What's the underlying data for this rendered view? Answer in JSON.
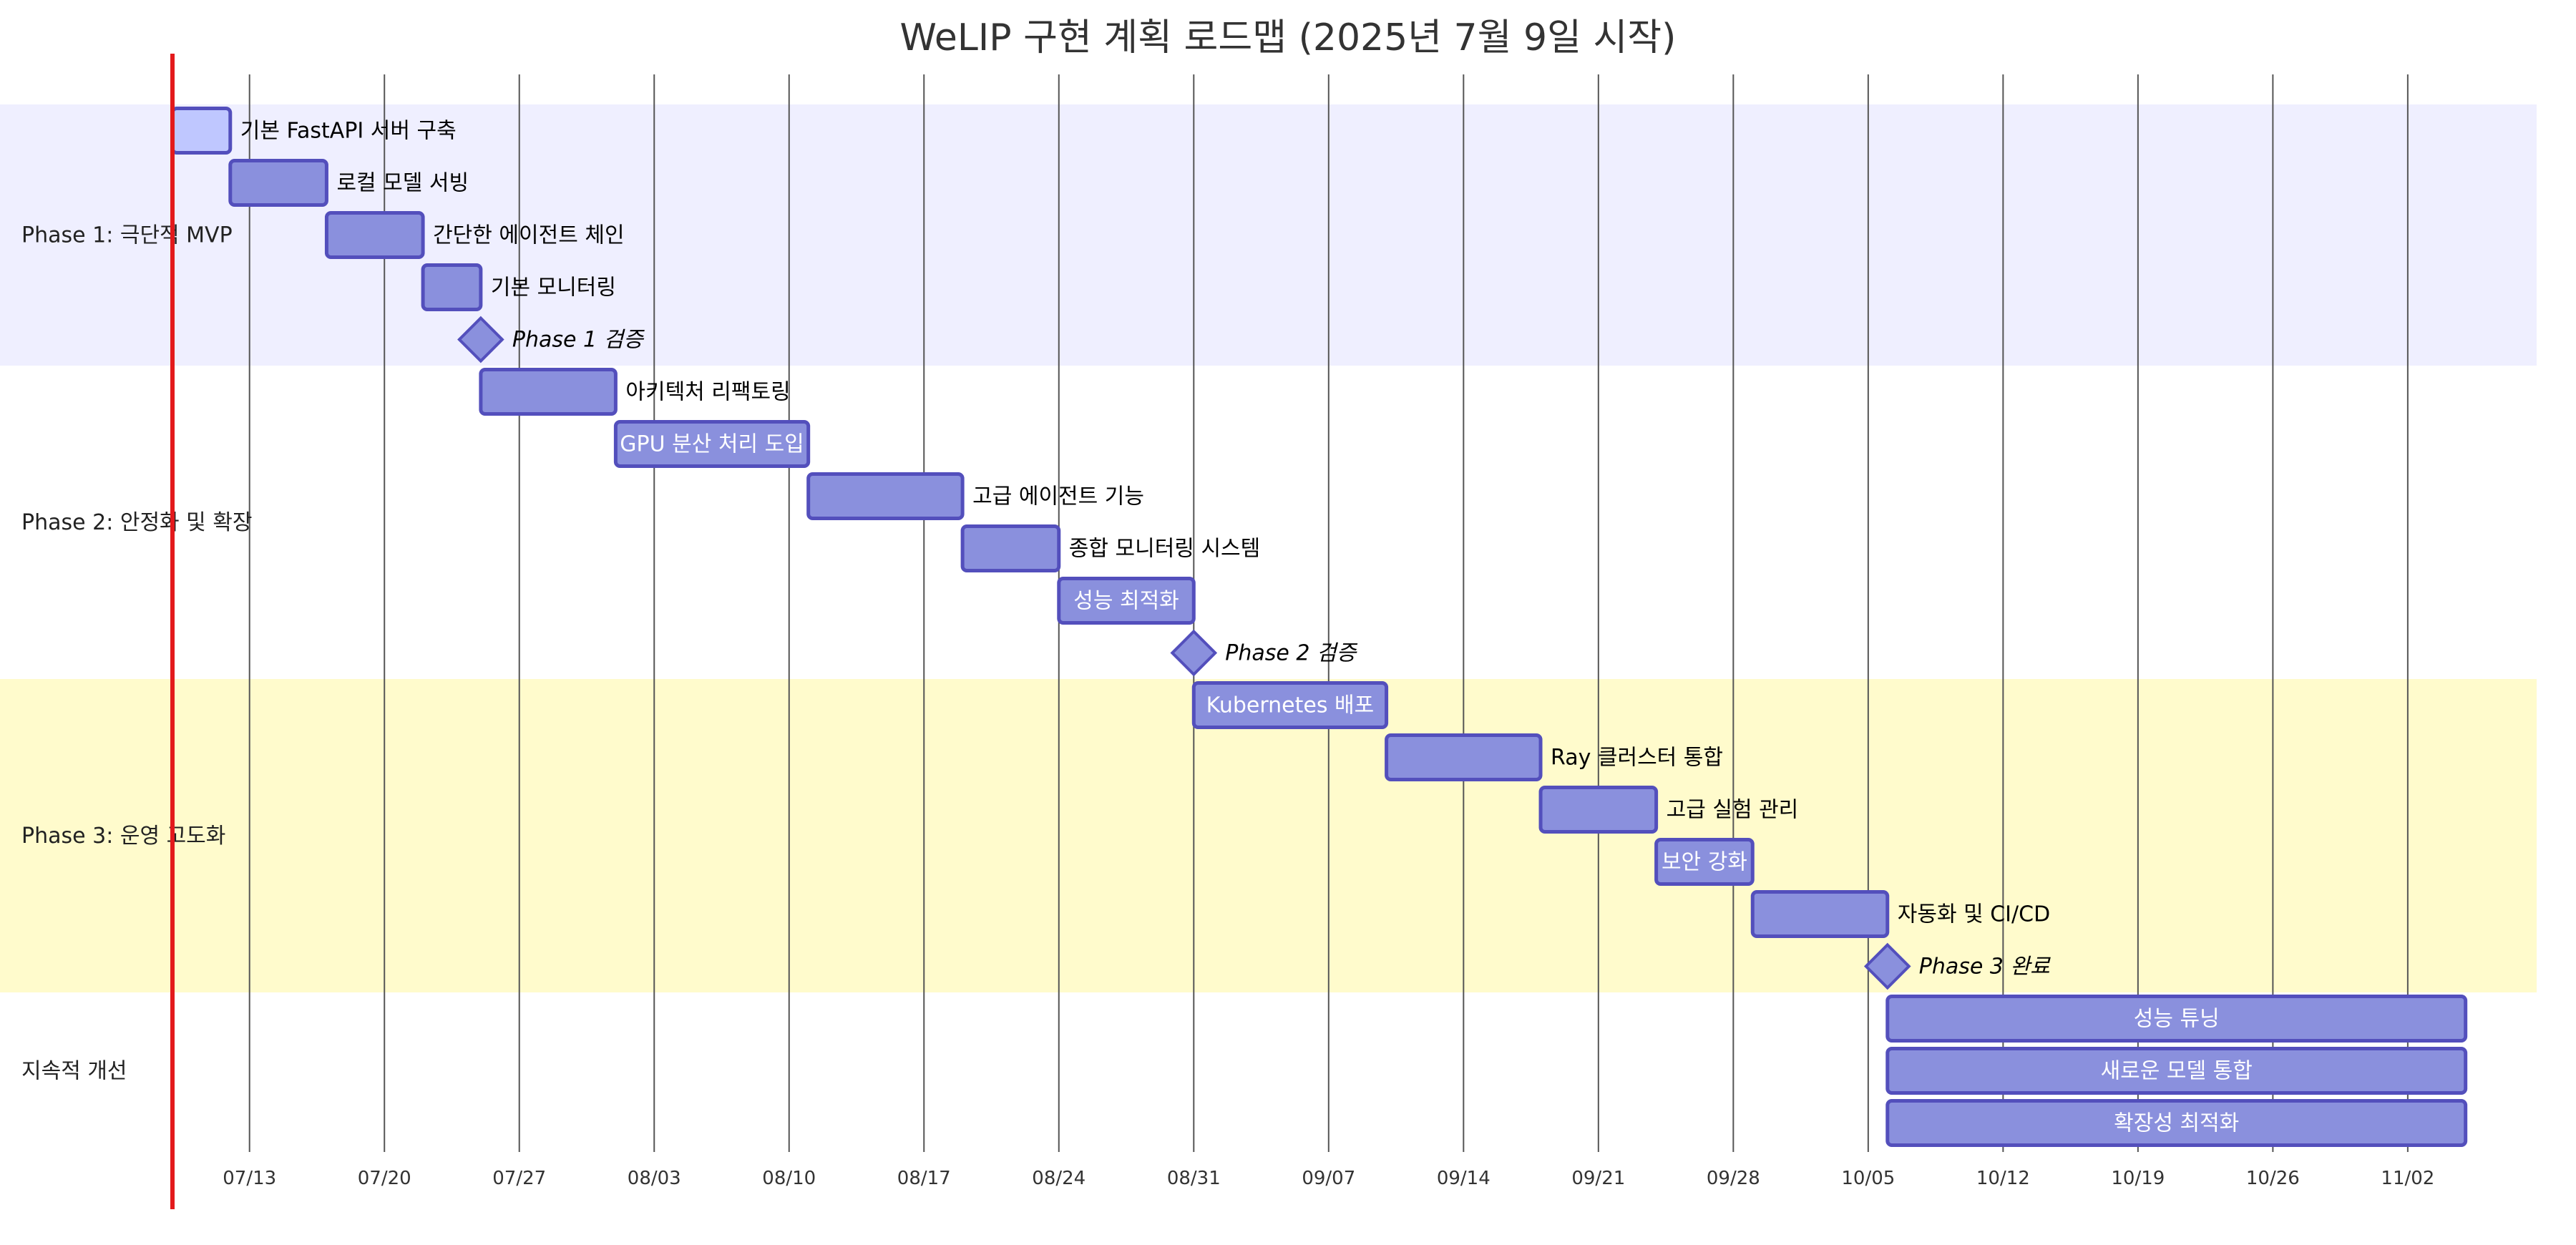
{
  "chart_data": {
    "type": "gantt",
    "title": "WeLIP 구현 계획 로드맵 (2025년 7월 9일 시작)",
    "start_date": "2025-07-09",
    "today_marker": "2025-07-09",
    "x_ticks": [
      "07/13",
      "07/20",
      "07/27",
      "08/03",
      "08/10",
      "08/17",
      "08/24",
      "08/31",
      "09/07",
      "09/14",
      "09/21",
      "09/28",
      "10/05",
      "10/12",
      "10/19",
      "10/26",
      "11/02"
    ],
    "sections": [
      {
        "name": "Phase 1: 극단적 MVP",
        "color": "#efefff",
        "tasks": [
          {
            "label": "기본 FastAPI 서버 구축",
            "start": "2025-07-09",
            "end": "2025-07-12",
            "type": "task",
            "highlight": true
          },
          {
            "label": "로컬 모델 서빙",
            "start": "2025-07-12",
            "end": "2025-07-17",
            "type": "task"
          },
          {
            "label": "간단한 에이전트 체인",
            "start": "2025-07-17",
            "end": "2025-07-22",
            "type": "task"
          },
          {
            "label": "기본 모니터링",
            "start": "2025-07-22",
            "end": "2025-07-25",
            "type": "task"
          },
          {
            "label": "Phase 1 검증",
            "start": "2025-07-25",
            "end": "2025-07-25",
            "type": "milestone"
          }
        ]
      },
      {
        "name": "Phase 2: 안정화 및 확장",
        "color": "#ffffff",
        "tasks": [
          {
            "label": "아키텍처 리팩토링",
            "start": "2025-07-25",
            "end": "2025-08-01",
            "type": "task"
          },
          {
            "label": "GPU 분산 처리 도입",
            "start": "2025-08-01",
            "end": "2025-08-11",
            "type": "task",
            "label_inside": true
          },
          {
            "label": "고급 에이전트 기능",
            "start": "2025-08-11",
            "end": "2025-08-19",
            "type": "task"
          },
          {
            "label": "종합 모니터링 시스템",
            "start": "2025-08-19",
            "end": "2025-08-24",
            "type": "task"
          },
          {
            "label": "성능 최적화",
            "start": "2025-08-24",
            "end": "2025-08-31",
            "type": "task",
            "label_inside": true
          },
          {
            "label": "Phase 2 검증",
            "start": "2025-08-31",
            "end": "2025-08-31",
            "type": "milestone"
          }
        ]
      },
      {
        "name": "Phase 3: 운영 고도화",
        "color": "#fffbcc",
        "tasks": [
          {
            "label": "Kubernetes 배포",
            "start": "2025-08-31",
            "end": "2025-09-10",
            "type": "task",
            "label_inside": true
          },
          {
            "label": "Ray 클러스터 통합",
            "start": "2025-09-10",
            "end": "2025-09-18",
            "type": "task"
          },
          {
            "label": "고급 실험 관리",
            "start": "2025-09-18",
            "end": "2025-09-24",
            "type": "task"
          },
          {
            "label": "보안 강화",
            "start": "2025-09-24",
            "end": "2025-09-29",
            "type": "task",
            "label_inside": true
          },
          {
            "label": "자동화 및 CI/CD",
            "start": "2025-09-29",
            "end": "2025-10-06",
            "type": "task"
          },
          {
            "label": "Phase 3 완료",
            "start": "2025-10-06",
            "end": "2025-10-06",
            "type": "milestone"
          }
        ]
      },
      {
        "name": "지속적 개선",
        "color": "#ffffff",
        "tasks": [
          {
            "label": "성능 튜닝",
            "start": "2025-10-06",
            "end": "2025-11-05",
            "type": "task",
            "label_inside": true
          },
          {
            "label": "새로운 모델 통합",
            "start": "2025-10-06",
            "end": "2025-11-05",
            "type": "task",
            "label_inside": true
          },
          {
            "label": "확장성 최적화",
            "start": "2025-10-06",
            "end": "2025-11-05",
            "type": "task",
            "label_inside": true
          }
        ]
      }
    ],
    "colors": {
      "task_fill": "#8a90dd",
      "task_stroke": "#534fbc",
      "highlight_fill": "#bfc7ff",
      "today_line": "#e31a1c",
      "label_dark": "#000000",
      "label_light": "#ffffff"
    }
  }
}
